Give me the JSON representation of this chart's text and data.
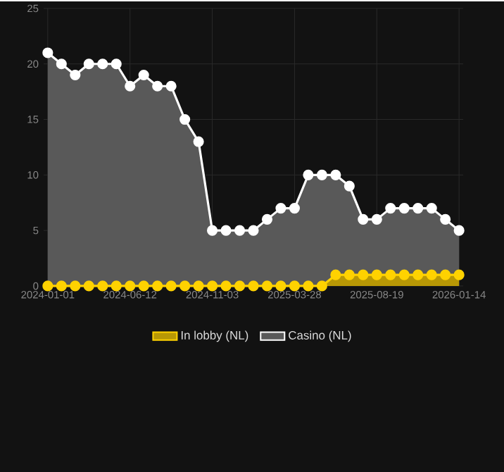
{
  "chart_data": {
    "type": "area",
    "categories": [
      "2024-01-01",
      null,
      null,
      null,
      null,
      null,
      "2024-06-12",
      null,
      null,
      null,
      null,
      null,
      "2024-11-03",
      null,
      null,
      null,
      null,
      null,
      "2025-03-28",
      null,
      null,
      null,
      null,
      null,
      "2025-08-19",
      null,
      null,
      null,
      null,
      null,
      "2026-01-14"
    ],
    "series": [
      {
        "name": "Casino (NL)",
        "color": "#ffffff",
        "values": [
          21,
          20,
          19,
          20,
          20,
          20,
          18,
          19,
          18,
          18,
          15,
          13,
          5,
          5,
          5,
          5,
          6,
          7,
          7,
          10,
          10,
          10,
          9,
          6,
          6,
          7,
          7,
          7,
          7,
          6,
          5
        ]
      },
      {
        "name": "In lobby (NL)",
        "color": "#ffd200",
        "values": [
          0,
          0,
          0,
          0,
          0,
          0,
          0,
          0,
          0,
          0,
          0,
          0,
          0,
          0,
          0,
          0,
          0,
          0,
          0,
          0,
          0,
          1,
          1,
          1,
          1,
          1,
          1,
          1,
          1,
          1,
          1
        ]
      }
    ],
    "ylim": [
      0,
      25
    ],
    "yticks": [
      0,
      5,
      10,
      15,
      20,
      25
    ],
    "grid": true,
    "legend": "bottom",
    "marker": "circle"
  }
}
